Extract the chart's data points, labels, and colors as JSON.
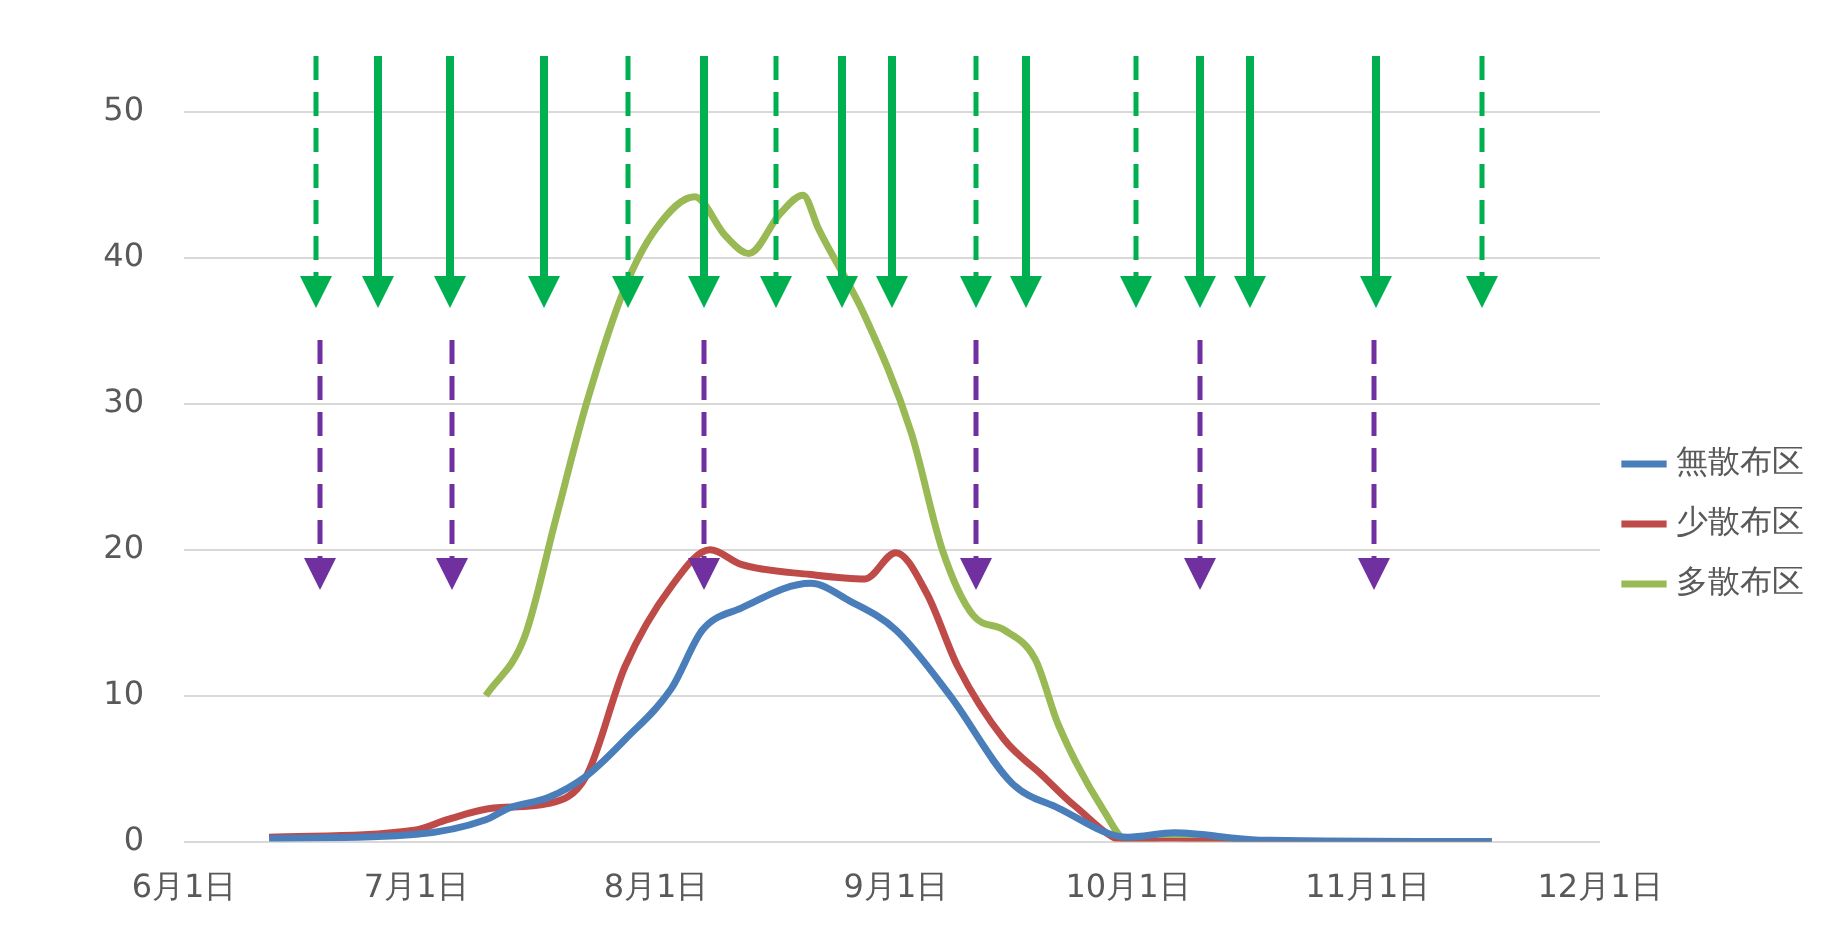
{
  "chart_data": {
    "type": "line",
    "x": [
      "--06-12",
      "--07-01",
      "--07-10",
      "--07-13",
      "--07-18",
      "--07-23",
      "--07-28",
      "--08-03",
      "--08-07",
      "--08-12",
      "--08-21",
      "--08-26",
      "--09-01",
      "--09-08",
      "--09-16",
      "--09-22",
      "--10-01",
      "--10-07",
      "--10-18",
      "--11-17"
    ],
    "series": [
      {
        "name": "無散布区",
        "color": "#4a7ebb",
        "values": [
          0.2,
          0.5,
          1.5,
          2.3,
          3,
          4.5,
          7,
          10.5,
          14.5,
          16,
          17.7,
          16.5,
          14.5,
          10,
          4,
          2.3,
          0.3,
          0.6,
          0.1,
          0
        ]
      },
      {
        "name": "少散布区",
        "color": "#be4b48",
        "x": [
          "--06-12",
          "--07-01",
          "--07-05",
          "--07-11",
          "--07-18",
          "--07-23",
          "--07-28",
          "--08-03",
          "--08-08",
          "--08-12",
          "--08-21",
          "--08-28",
          "--09-01",
          "--09-05",
          "--09-09",
          "--09-15",
          "--09-20",
          "--09-24",
          "--10-01",
          "--10-09",
          "--11-17"
        ],
        "values": [
          0.3,
          0.8,
          1.5,
          2.3,
          2.6,
          4.5,
          12,
          17.5,
          20,
          19,
          18.3,
          18,
          19.8,
          17,
          12,
          7,
          4.5,
          2.5,
          0,
          0,
          0
        ]
      },
      {
        "name": "多散布区",
        "color": "#98b954",
        "x": [
          "--07-10",
          "--07-15",
          "--07-19",
          "--07-23",
          "--07-28",
          "--08-01",
          "--08-06",
          "--08-10",
          "--08-13",
          "--08-17",
          "--08-20",
          "--08-22",
          "--08-28",
          "--09-03",
          "--09-07",
          "--09-11",
          "--09-15",
          "--09-19",
          "--09-22",
          "--09-28",
          "--10-01",
          "--10-06",
          "--10-14",
          "--11-17"
        ],
        "values": [
          10,
          14,
          22,
          30,
          38,
          42,
          44.2,
          41.5,
          40.3,
          43,
          44.3,
          42,
          36,
          28,
          20,
          15.5,
          14.5,
          12.5,
          8,
          2,
          0,
          0.3,
          0,
          0
        ]
      }
    ],
    "xlim": [
      "--06-01",
      "--12-01"
    ],
    "xticks": [
      {
        "value": "--06-01",
        "label": "6月1日"
      },
      {
        "value": "--07-01",
        "label": "7月1日"
      },
      {
        "value": "--08-01",
        "label": "8月1日"
      },
      {
        "value": "--09-01",
        "label": "9月1日"
      },
      {
        "value": "--10-01",
        "label": "10月1日"
      },
      {
        "value": "--11-01",
        "label": "11月1日"
      },
      {
        "value": "--12-01",
        "label": "12月1日"
      }
    ],
    "ylim": [
      0,
      50
    ],
    "yticks": [
      0,
      10,
      20,
      30,
      40,
      50
    ],
    "grid": "y",
    "legend": "right",
    "marker": "none",
    "line_style": "solid"
  }
}
